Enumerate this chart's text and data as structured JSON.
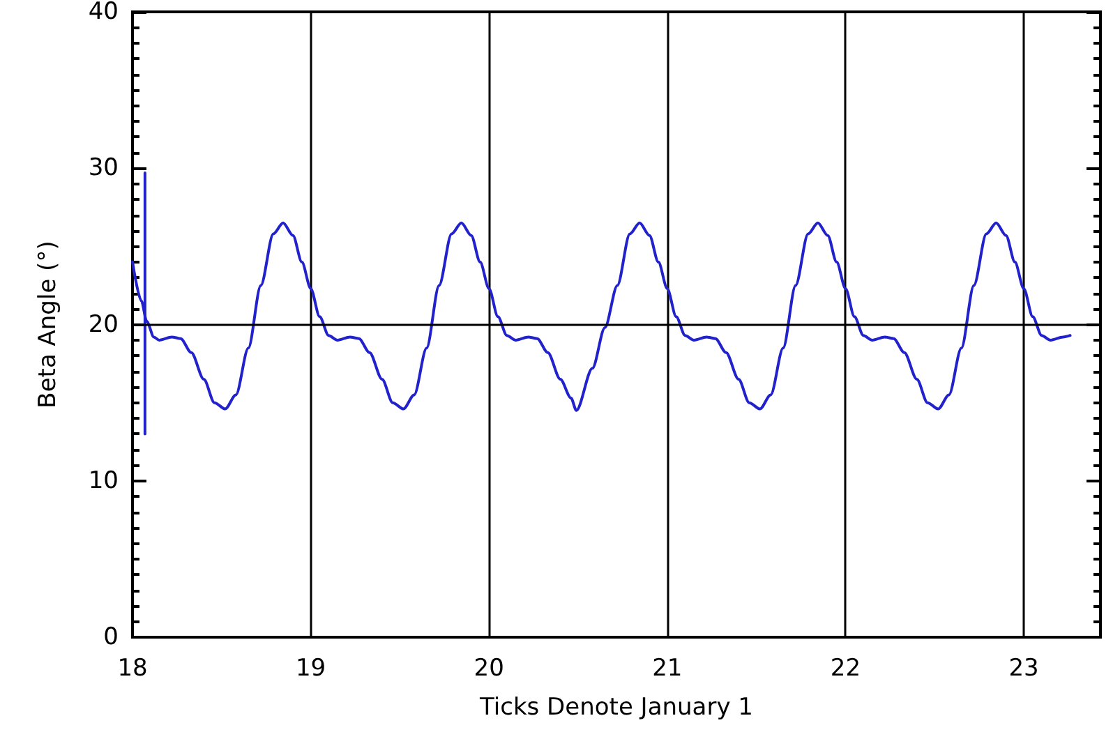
{
  "chart_data": {
    "type": "line",
    "xlabel": "Ticks Denote January 1",
    "ylabel": "Beta Angle (°)",
    "xlim": [
      18,
      23.43
    ],
    "xticks": [
      18,
      19,
      20,
      21,
      22,
      23
    ],
    "ylim": [
      0,
      40
    ],
    "yticks": [
      0,
      10,
      20,
      30,
      40
    ],
    "grid": "x",
    "marker": "none",
    "line_style": "solid",
    "ref_lines": [
      {
        "axis": "y",
        "value": 20,
        "color": "#000000"
      }
    ],
    "series": [
      {
        "color": "#2222cc",
        "x": [
          18,
          18.05,
          18.08,
          18.12,
          18.15,
          18.22,
          18.27,
          18.33,
          18.4,
          18.46,
          18.52,
          18.58,
          18.65,
          18.72,
          18.79,
          18.845,
          18.9,
          18.95,
          19,
          19.05,
          19.1,
          19.15,
          19.22,
          19.27,
          19.33,
          19.4,
          19.46,
          19.52,
          19.58,
          19.65,
          19.72,
          19.79,
          19.845,
          19.9,
          19.95,
          20,
          20.05,
          20.1,
          20.15,
          20.22,
          20.27,
          20.33,
          20.4,
          20.46,
          20.49,
          20.58,
          20.65,
          20.72,
          20.79,
          20.845,
          20.9,
          20.95,
          21,
          21.05,
          21.1,
          21.15,
          21.22,
          21.27,
          21.33,
          21.4,
          21.46,
          21.52,
          21.58,
          21.65,
          21.72,
          21.79,
          21.845,
          21.9,
          21.95,
          22,
          22.05,
          22.1,
          22.15,
          22.22,
          22.27,
          22.33,
          22.4,
          22.46,
          22.52,
          22.58,
          22.65,
          22.72,
          22.79,
          22.845,
          22.9,
          22.95,
          23,
          23.05,
          23.1,
          23.15,
          23.22,
          23.26
        ],
        "values": [
          24,
          21.5,
          20.2,
          19.2,
          19,
          19.2,
          19.1,
          18.2,
          16.5,
          15,
          14.6,
          15.5,
          18.5,
          22.5,
          25.8,
          26.5,
          25.7,
          24,
          22.3,
          20.5,
          19.3,
          19,
          19.2,
          19.1,
          18.2,
          16.5,
          15,
          14.6,
          15.5,
          18.5,
          22.5,
          25.8,
          26.5,
          25.7,
          24,
          22.3,
          20.5,
          19.3,
          19,
          19.2,
          19.1,
          18.2,
          16.5,
          15.3,
          14.5,
          17.2,
          19.8,
          22.5,
          25.8,
          26.5,
          25.7,
          24,
          22.3,
          20.5,
          19.3,
          19,
          19.2,
          19.1,
          18.2,
          16.5,
          15,
          14.6,
          15.5,
          18.5,
          22.5,
          25.8,
          26.5,
          25.7,
          24,
          22.3,
          20.5,
          19.3,
          19,
          19.2,
          19.1,
          18.2,
          16.5,
          15,
          14.6,
          15.5,
          18.5,
          22.5,
          25.8,
          26.5,
          25.7,
          24,
          22.3,
          20.5,
          19.3,
          19,
          19.2,
          19.3
        ]
      },
      {
        "color": "#2222cc",
        "x": [
          18.07,
          18.07
        ],
        "values": [
          13,
          29.7
        ]
      }
    ]
  }
}
